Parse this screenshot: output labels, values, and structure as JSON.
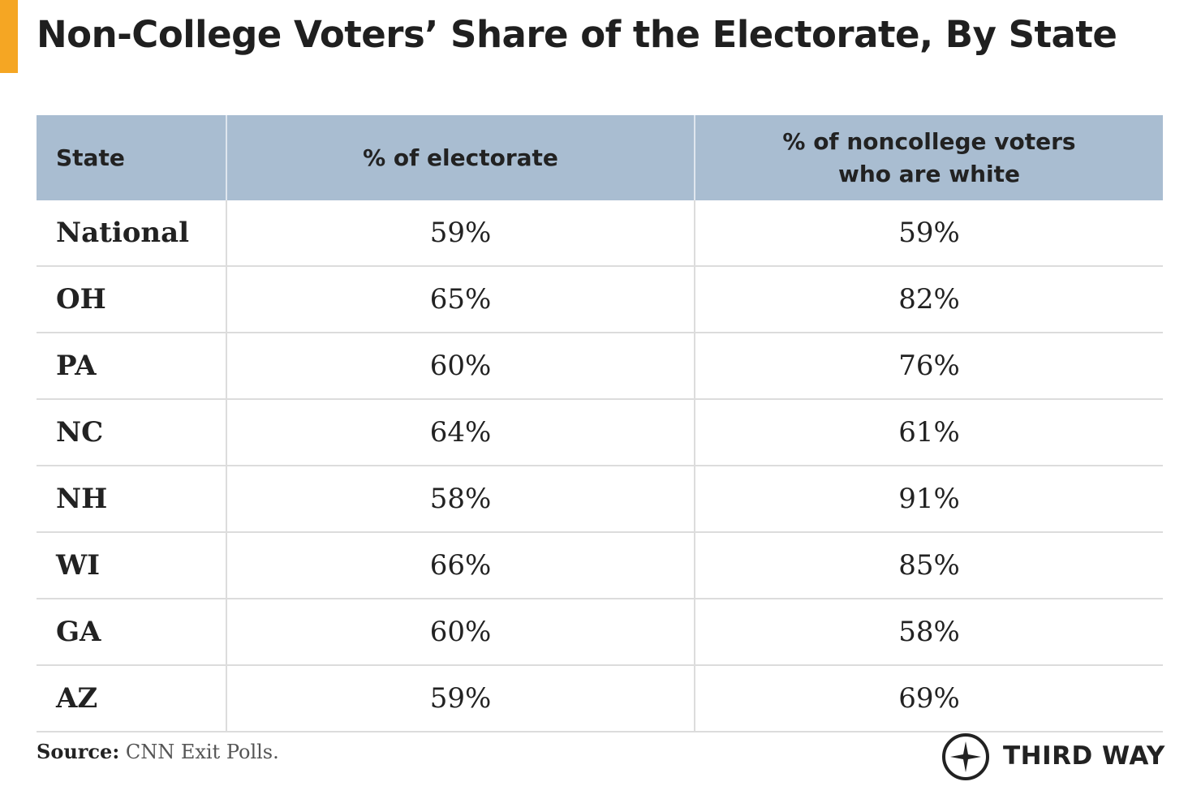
{
  "header": {
    "title": "Non-College Voters’ Share of the Electorate, By State"
  },
  "table": {
    "columns": [
      "State",
      "% of electorate",
      "% of noncollege voters who are white"
    ],
    "rows": [
      [
        "National",
        "59%",
        "59%"
      ],
      [
        "OH",
        "65%",
        "82%"
      ],
      [
        "PA",
        "60%",
        "76%"
      ],
      [
        "NC",
        "64%",
        "61%"
      ],
      [
        "NH",
        "58%",
        "91%"
      ],
      [
        "WI",
        "66%",
        "85%"
      ],
      [
        "GA",
        "60%",
        "58%"
      ],
      [
        "AZ",
        "59%",
        "69%"
      ]
    ]
  },
  "footer": {
    "source_label": "Source:",
    "source": "CNN Exit Polls.",
    "logo": "THIRD WAY"
  }
}
